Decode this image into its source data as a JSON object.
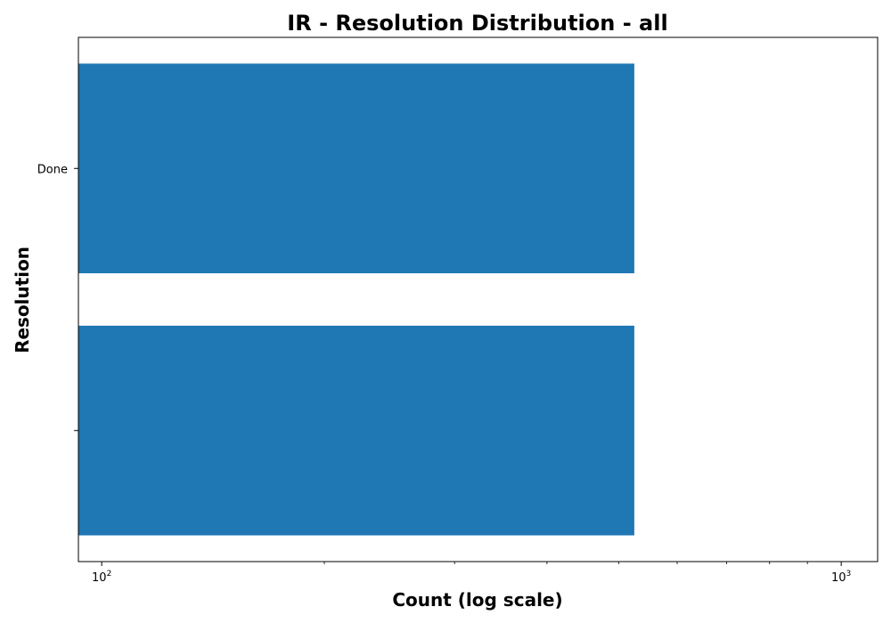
{
  "chart_data": {
    "type": "bar",
    "orientation": "horizontal",
    "title": "IR - Resolution Distribution - all",
    "xlabel": "Count (log scale)",
    "ylabel": "Resolution",
    "x_scale": "log",
    "xlim": [
      93,
      1120
    ],
    "x_ticks": [
      {
        "base": "10",
        "exp": "2",
        "value": 100
      },
      {
        "base": "10",
        "exp": "3",
        "value": 1000
      }
    ],
    "categories": [
      "",
      "Done"
    ],
    "values": [
      525,
      525
    ],
    "bar_color": "#1f77b4",
    "grid": false,
    "legend": "none"
  }
}
